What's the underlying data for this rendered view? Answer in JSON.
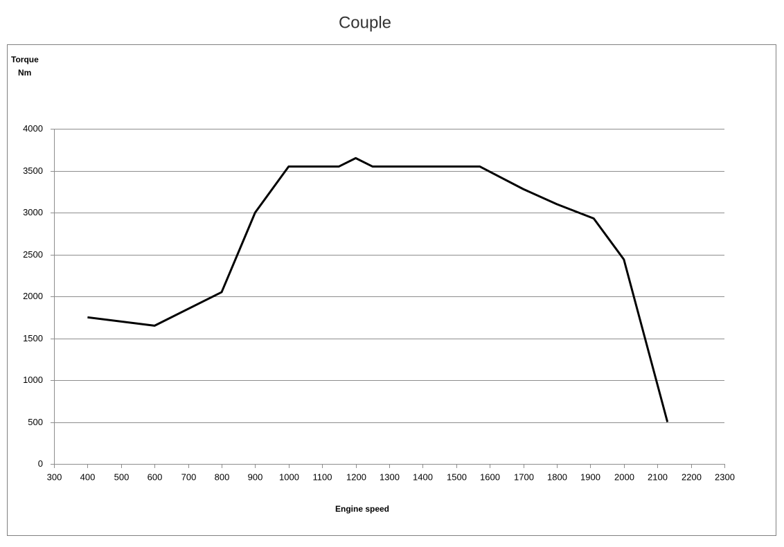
{
  "chart_data": {
    "type": "line",
    "title": "Couple",
    "ylabel": [
      "Torque",
      "Nm"
    ],
    "xlabel": "Engine speed",
    "x": [
      400,
      600,
      800,
      900,
      1000,
      1150,
      1200,
      1250,
      1570,
      1700,
      1800,
      1910,
      2000,
      2130
    ],
    "series": [
      {
        "name": "Torque",
        "color": "#000000",
        "values": [
          1750,
          1650,
          2050,
          3000,
          3550,
          3550,
          3650,
          3550,
          3550,
          3280,
          3100,
          2930,
          2440,
          500
        ]
      }
    ],
    "xlim": [
      300,
      2300
    ],
    "xticks": [
      300,
      400,
      500,
      600,
      700,
      800,
      900,
      1000,
      1100,
      1200,
      1300,
      1400,
      1500,
      1600,
      1700,
      1800,
      1900,
      2000,
      2100,
      2200,
      2300
    ],
    "ylim": [
      0,
      4000
    ],
    "yticks": [
      0,
      500,
      1000,
      1500,
      2000,
      2500,
      3000,
      3500,
      4000
    ],
    "grid": true
  }
}
